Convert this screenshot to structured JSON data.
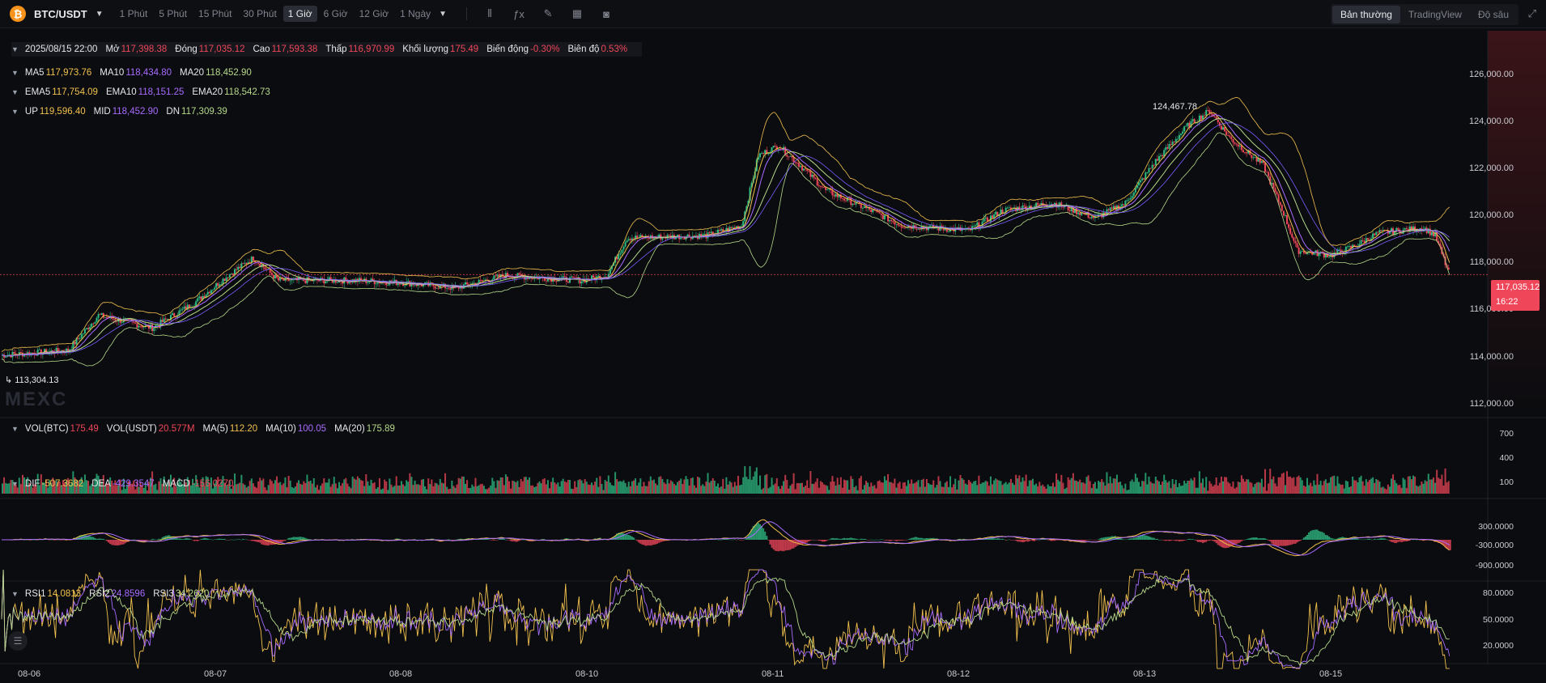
{
  "toolbar": {
    "logo": "₿",
    "symbol": "BTC/USDT",
    "intervals": [
      {
        "label": "1 Phút",
        "active": false
      },
      {
        "label": "5 Phút",
        "active": false
      },
      {
        "label": "15 Phút",
        "active": false
      },
      {
        "label": "30 Phút",
        "active": false
      },
      {
        "label": "1 Giờ",
        "active": true
      },
      {
        "label": "6 Giờ",
        "active": false
      },
      {
        "label": "12 Giờ",
        "active": false
      },
      {
        "label": "1 Ngày",
        "active": false
      }
    ],
    "tools": [
      "candle-type-icon",
      "indicators-icon",
      "draw-pen-icon",
      "layout-grid-icon",
      "camera-icon"
    ],
    "views": [
      {
        "label": "Bản thường",
        "active": true
      },
      {
        "label": "TradingView",
        "active": false
      },
      {
        "label": "Độ sâu",
        "active": false
      }
    ]
  },
  "ohlc": {
    "date": "2025/08/15 22:00",
    "open_label": "Mở",
    "open": "117,398.38",
    "close_label": "Đóng",
    "close": "117,035.12",
    "high_label": "Cao",
    "high": "117,593.38",
    "low_label": "Thấp",
    "low": "116,970.99",
    "vol_label": "Khối lượng",
    "vol": "175.49",
    "change_label": "Biến động",
    "change": "-0.30%",
    "amp_label": "Biên độ",
    "amp": "0.53%"
  },
  "ma": {
    "ma5_label": "MA5",
    "ma5": "117,973.76",
    "ma10_label": "MA10",
    "ma10": "118,434.80",
    "ma20_label": "MA20",
    "ma20": "118,452.90"
  },
  "ema": {
    "ema5_label": "EMA5",
    "ema5": "117,754.09",
    "ema10_label": "EMA10",
    "ema10": "118,151.25",
    "ema20_label": "EMA20",
    "ema20": "118,542.73"
  },
  "boll": {
    "up_label": "UP",
    "up": "119,596.40",
    "mid_label": "MID",
    "mid": "118,452.90",
    "dn_label": "DN",
    "dn": "117,309.39"
  },
  "vol": {
    "btc_label": "VOL(BTC)",
    "btc": "175.49",
    "usdt_label": "VOL(USDT)",
    "usdt": "20.577M",
    "ma5_label": "MA(5)",
    "ma5": "112.20",
    "ma10_label": "MA(10)",
    "ma10": "100.05",
    "ma20_label": "MA(20)",
    "ma20": "175.89"
  },
  "macd": {
    "dif_label": "DIF",
    "dif": "-507.3682",
    "dea_label": "DEA",
    "dea": "-429.3547",
    "macd_label": "MACD",
    "macd": "-156.0270"
  },
  "rsi": {
    "rsi1_label": "RSI1",
    "rsi1": "14.0813",
    "rsi2_label": "RSI2",
    "rsi2": "24.8596",
    "rsi3_label": "RSI3",
    "rsi3": "34.2620"
  },
  "price_axis": [
    "126,000.00",
    "124,000.00",
    "122,000.00",
    "120,000.00",
    "118,000.00",
    "116,000.00",
    "114,000.00",
    "112,000.00"
  ],
  "vol_axis": [
    "700",
    "400",
    "100"
  ],
  "macd_axis": [
    "300.0000",
    "-300.0000",
    "-900.0000"
  ],
  "rsi_axis": [
    "80.0000",
    "50.0000",
    "20.0000"
  ],
  "last_price": {
    "price": "117,035.12",
    "countdown": "16:22"
  },
  "high_marker": "124,467.78",
  "low_marker": "113,304.13",
  "watermark": "MEXC",
  "dates": [
    "08-06",
    "08-07",
    "08-08",
    "08-10",
    "08-11",
    "08-12",
    "08-13",
    "08-15"
  ],
  "colors": {
    "up": "#2ebd85",
    "down": "#f0465a",
    "ma5": "#f2c14e",
    "ma10": "#a86bff",
    "ma20": "#b6d98a"
  },
  "chart_data": {
    "type": "candlestick",
    "interval": "1 Giờ",
    "ylim": [
      111500,
      126800
    ],
    "waypoints": [
      {
        "t": 0,
        "p": 113800
      },
      {
        "t": 40,
        "p": 114000
      },
      {
        "t": 58,
        "p": 115400
      },
      {
        "t": 90,
        "p": 114900
      },
      {
        "t": 115,
        "p": 115900
      },
      {
        "t": 135,
        "p": 117000
      },
      {
        "t": 150,
        "p": 117700
      },
      {
        "t": 165,
        "p": 116800
      },
      {
        "t": 210,
        "p": 116800
      },
      {
        "t": 240,
        "p": 116700
      },
      {
        "t": 270,
        "p": 116500
      },
      {
        "t": 300,
        "p": 117000
      },
      {
        "t": 345,
        "p": 116800
      },
      {
        "t": 360,
        "p": 117000
      },
      {
        "t": 372,
        "p": 118500
      },
      {
        "t": 420,
        "p": 118600
      },
      {
        "t": 440,
        "p": 119000
      },
      {
        "t": 450,
        "p": 121800
      },
      {
        "t": 462,
        "p": 122200
      },
      {
        "t": 478,
        "p": 121200
      },
      {
        "t": 490,
        "p": 120400
      },
      {
        "t": 520,
        "p": 119500
      },
      {
        "t": 535,
        "p": 119000
      },
      {
        "t": 575,
        "p": 118800
      },
      {
        "t": 595,
        "p": 119600
      },
      {
        "t": 625,
        "p": 119900
      },
      {
        "t": 650,
        "p": 119300
      },
      {
        "t": 668,
        "p": 119900
      },
      {
        "t": 685,
        "p": 121500
      },
      {
        "t": 705,
        "p": 123000
      },
      {
        "t": 718,
        "p": 123600
      },
      {
        "t": 730,
        "p": 122500
      },
      {
        "t": 750,
        "p": 121400
      },
      {
        "t": 762,
        "p": 119500
      },
      {
        "t": 770,
        "p": 118000
      },
      {
        "t": 790,
        "p": 117800
      },
      {
        "t": 805,
        "p": 118200
      },
      {
        "t": 818,
        "p": 118700
      },
      {
        "t": 845,
        "p": 118900
      },
      {
        "t": 852,
        "p": 118600
      },
      {
        "t": 860,
        "p": 117100
      }
    ]
  }
}
